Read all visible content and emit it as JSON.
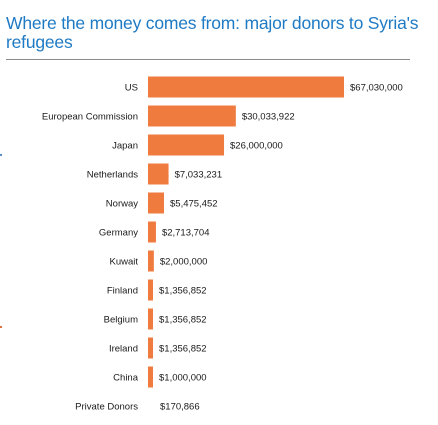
{
  "page": {
    "title": "Where the money comes from: major donors to Syria's refugees"
  },
  "colors": {
    "bar": "#f07b3f",
    "title": "#1f7ac4"
  },
  "chart_data": {
    "type": "bar",
    "orientation": "horizontal",
    "title": "Where the money comes from: major donors to Syria's refugees",
    "xlabel": "",
    "ylabel": "",
    "grid": false,
    "legend": "none",
    "xlim": [
      0,
      67030000
    ],
    "categories": [
      "US",
      "European Commission",
      "Japan",
      "Netherlands",
      "Norway",
      "Germany",
      "Kuwait",
      "Finland",
      "Belgium",
      "Ireland",
      "China",
      "Private Donors"
    ],
    "values": [
      67030000,
      30033922,
      26000000,
      7033231,
      5475452,
      2713704,
      2000000,
      1356852,
      1356852,
      1356852,
      1000000,
      170866
    ],
    "value_labels": [
      "$67,030,000",
      "$30,033,922",
      "$26,000,000",
      "$7,033,231",
      "$5,475,452",
      "$2,713,704",
      "$2,000,000",
      "$1,356,852",
      "$1,356,852",
      "$1,356,852",
      "$1,000,000",
      "$170,866"
    ]
  }
}
